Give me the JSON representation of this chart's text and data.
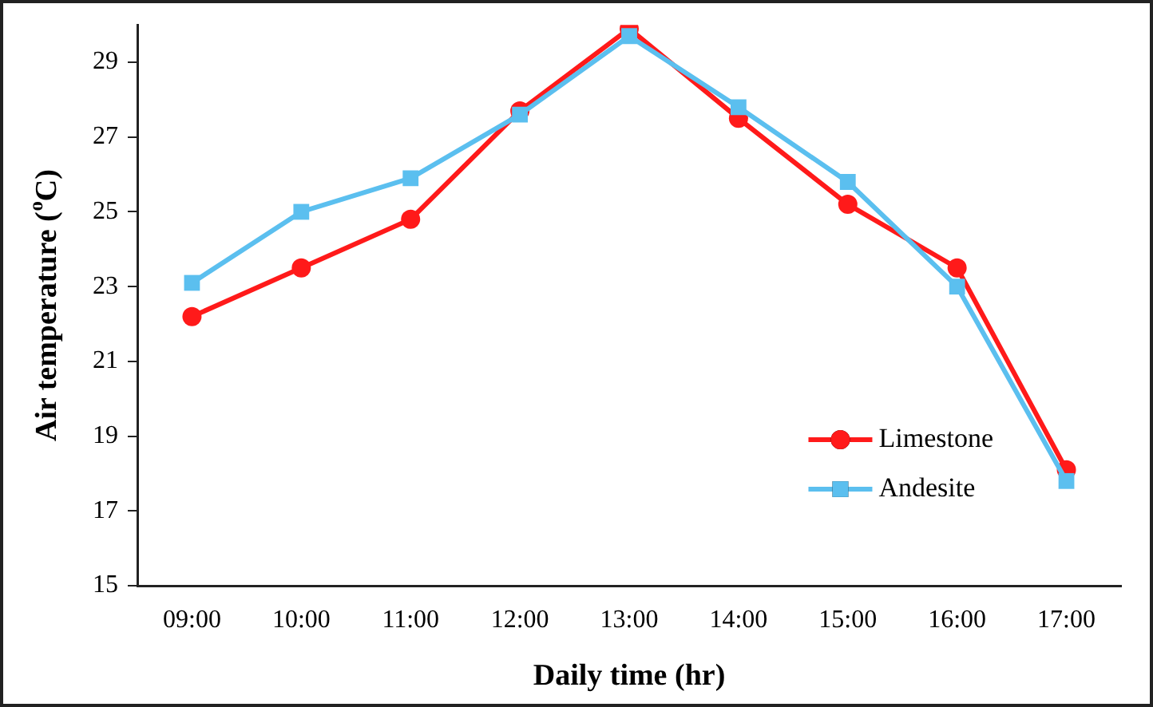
{
  "chart_data": {
    "type": "line",
    "xlabel": "Daily time (hr)",
    "ylabel": "Air temperature ($^{o}$C)",
    "categories": [
      "09:00",
      "10:00",
      "11:00",
      "12:00",
      "13:00",
      "14:00",
      "15:00",
      "16:00",
      "17:00"
    ],
    "series": [
      {
        "name": "Limestone",
        "color": "#ff1a1a",
        "marker": "circle",
        "values": [
          22.2,
          23.5,
          24.8,
          27.7,
          29.9,
          27.5,
          25.2,
          23.5,
          18.1
        ]
      },
      {
        "name": "Andesite",
        "color": "#5bbfef",
        "marker": "square",
        "values": [
          23.1,
          25.0,
          25.9,
          27.6,
          29.7,
          27.8,
          25.8,
          23.0,
          17.8
        ]
      }
    ],
    "ylim": [
      15,
      30
    ],
    "yticks": [
      15,
      17,
      19,
      21,
      23,
      25,
      27,
      29
    ],
    "grid": false,
    "legend": "bottom right",
    "line_style": "solid"
  }
}
